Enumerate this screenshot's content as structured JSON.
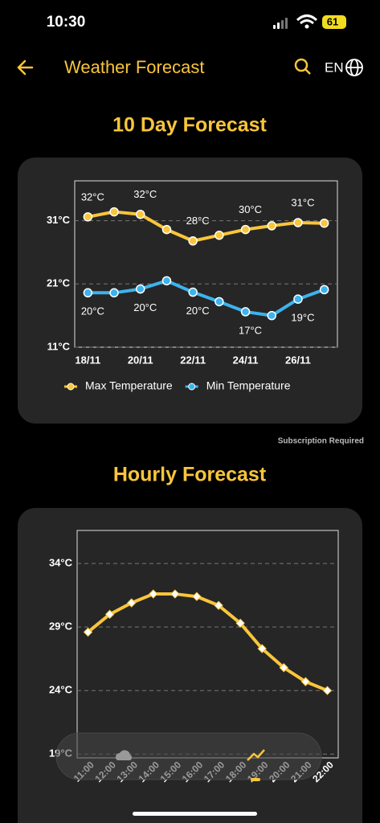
{
  "status_bar": {
    "time": "10:30",
    "battery": "61"
  },
  "header": {
    "title": "Weather Forecast",
    "language": "EN"
  },
  "subscription_note": "Subscription Required",
  "chart_data": [
    {
      "type": "line",
      "title": "10 Day Forecast",
      "categories": [
        "18/11",
        null,
        "20/11",
        null,
        "22/11",
        null,
        "24/11",
        null,
        "26/11",
        null
      ],
      "series": [
        {
          "name": "Max Temperature",
          "color": "#f9c53b",
          "values": [
            31.6,
            32.4,
            32.0,
            29.6,
            27.8,
            28.7,
            29.6,
            30.2,
            30.7,
            30.6
          ],
          "value_labels": [
            "32°C",
            null,
            "32°C",
            null,
            "28°C",
            null,
            "30°C",
            null,
            "31°C",
            null
          ],
          "label_side": "above"
        },
        {
          "name": "Min Temperature",
          "color": "#3cb3ee",
          "values": [
            19.6,
            19.6,
            20.2,
            21.5,
            19.7,
            18.2,
            16.6,
            16.0,
            18.6,
            20.1
          ],
          "value_labels": [
            "20°C",
            null,
            "20°C",
            null,
            "20°C",
            null,
            "17°C",
            null,
            "19°C",
            null
          ],
          "label_side": "below"
        }
      ],
      "ylim": [
        11,
        37.3
      ],
      "yticks": [
        {
          "value": 11,
          "label": "11°C"
        },
        {
          "value": 21,
          "label": "21°C"
        },
        {
          "value": 31,
          "label": "31°C"
        }
      ],
      "grid": true,
      "marker": "circle",
      "legend": "bottom"
    },
    {
      "type": "line",
      "title": "Hourly Forecast",
      "categories": [
        "11:00",
        "12:00",
        "13:00",
        "14:00",
        "15:00",
        "16:00",
        "17:00",
        "18:00",
        "19:00",
        "20:00",
        "21:00",
        "22:00"
      ],
      "series": [
        {
          "color": "#f9c53b",
          "values": [
            28.6,
            30.0,
            30.9,
            31.6,
            31.6,
            31.4,
            30.7,
            29.3,
            27.3,
            25.8,
            24.7,
            24.0
          ]
        }
      ],
      "ylim": [
        18.7,
        36.6
      ],
      "yticks": [
        {
          "value": 19,
          "label": "19°C"
        },
        {
          "value": 24,
          "label": "24°C"
        },
        {
          "value": 29,
          "label": "29°C"
        },
        {
          "value": 34,
          "label": "34°C"
        }
      ],
      "grid": true,
      "marker": "diamond",
      "rotate_x_labels": true
    }
  ]
}
